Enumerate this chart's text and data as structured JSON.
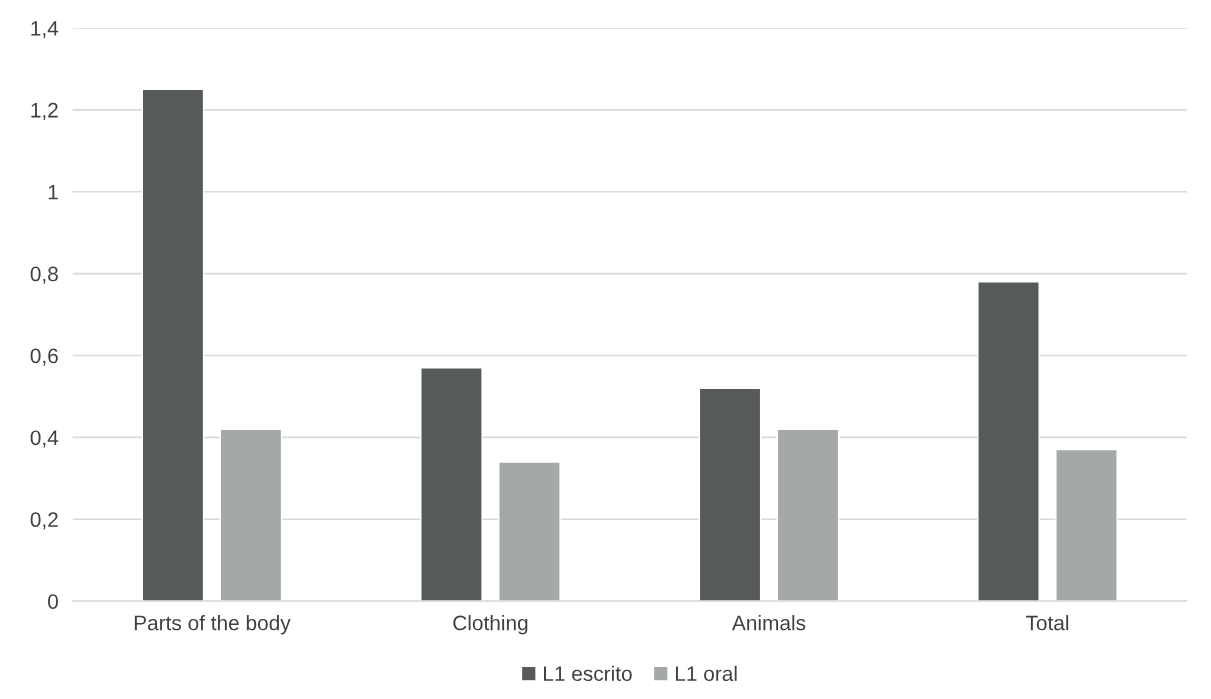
{
  "chart_data": {
    "type": "bar",
    "categories": [
      "Parts of the body",
      "Clothing",
      "Animals",
      "Total"
    ],
    "series": [
      {
        "name": "L1 escrito",
        "color": "#575a5a",
        "values": [
          1.25,
          0.57,
          0.52,
          0.78
        ]
      },
      {
        "name": "L1 oral",
        "color": "#a5a8a8",
        "values": [
          0.42,
          0.34,
          0.42,
          0.37
        ]
      }
    ],
    "ylim": [
      0,
      1.4
    ],
    "yticks": [
      0,
      {
        "value": 0.2,
        "label": "0,2"
      },
      {
        "value": 0.4,
        "label": "0,4"
      },
      {
        "value": 0.6,
        "label": "0,6"
      },
      {
        "value": 0.8,
        "label": "0,8"
      },
      1,
      {
        "value": 1.2,
        "label": "1,2"
      },
      {
        "value": 1.4,
        "label": "1,4"
      }
    ],
    "grid": "y",
    "legend": "bottom"
  }
}
